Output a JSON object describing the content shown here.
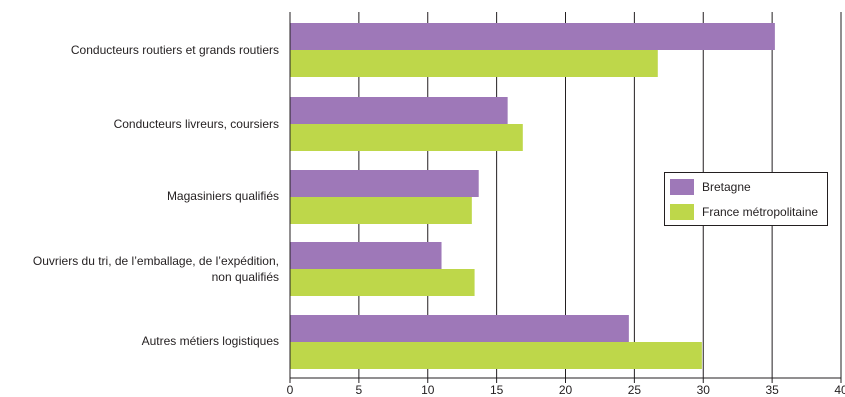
{
  "chart_data": {
    "type": "bar",
    "orientation": "horizontal",
    "categories": [
      "Conducteurs routiers et grands routiers",
      "Conducteurs livreurs, coursiers",
      "Magasiniers qualifiés",
      "Ouvriers du tri, de l’emballage, de l’expédition, non qualifiés",
      "Autres métiers logistiques"
    ],
    "category_lines": [
      [
        "Conducteurs routiers et grands routiers"
      ],
      [
        "Conducteurs livreurs, coursiers"
      ],
      [
        "Magasiniers qualifiés"
      ],
      [
        "Ouvriers du tri, de l’emballage, de l’expédition,",
        "non qualifiés"
      ],
      [
        "Autres métiers logistiques"
      ]
    ],
    "series": [
      {
        "name": "Bretagne",
        "color": "#9e78b8",
        "values": [
          35.2,
          15.8,
          13.7,
          11.0,
          24.6
        ]
      },
      {
        "name": "France métropolitaine",
        "color": "#bed74a",
        "values": [
          26.7,
          16.9,
          13.2,
          13.4,
          29.9
        ]
      }
    ],
    "xlim": [
      0,
      40
    ],
    "xticks": [
      0,
      5,
      10,
      15,
      20,
      25,
      30,
      35,
      40
    ],
    "grid": true,
    "legend_position": "right",
    "title": "",
    "xlabel": "",
    "ylabel": ""
  }
}
